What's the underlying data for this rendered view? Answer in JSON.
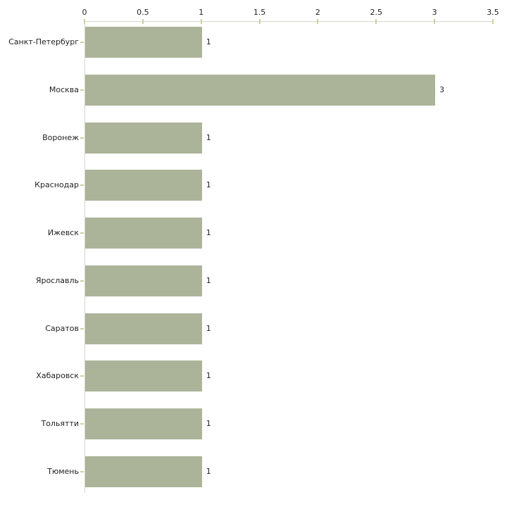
{
  "chart_data": {
    "type": "bar",
    "orientation": "horizontal",
    "title": "",
    "xlabel": "",
    "ylabel": "",
    "categories": [
      "Санкт-Петербург",
      "Москва",
      "Воронеж",
      "Краснодар",
      "Ижевск",
      "Ярославль",
      "Саратов",
      "Хабаровск",
      "Тольятти",
      "Тюмень"
    ],
    "values": [
      1,
      3,
      1,
      1,
      1,
      1,
      1,
      1,
      1,
      1
    ],
    "value_labels": [
      "1",
      "3",
      "1",
      "1",
      "1",
      "1",
      "1",
      "1",
      "1",
      "1"
    ],
    "xlim": [
      0,
      3.5
    ],
    "xticks": [
      "0",
      "0.5",
      "1",
      "1.5",
      "2",
      "2.5",
      "3",
      "3.5"
    ],
    "grid": false,
    "legend": false,
    "axis_position": "top"
  },
  "colors": {
    "bar": "#abb399",
    "axis": "#d6d6cc",
    "tick": "#cfcfa0",
    "text": "#1f1f1f",
    "background": "#ffffff"
  }
}
